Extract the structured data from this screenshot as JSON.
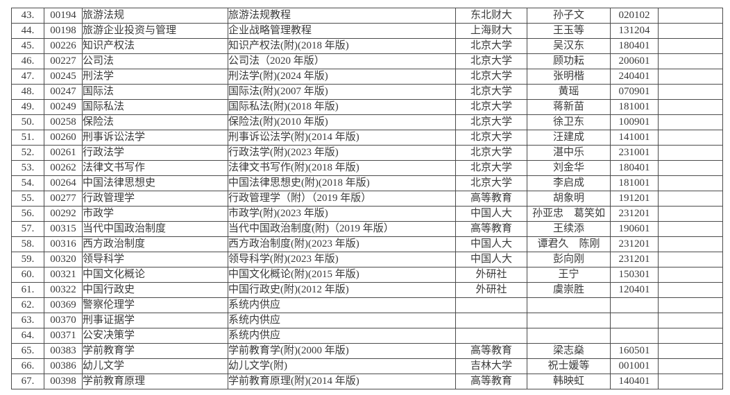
{
  "colors": {
    "text": "#3a3a3a",
    "border": "#4a4a4a",
    "background": "#ffffff"
  },
  "table": {
    "rows": [
      {
        "num": "43.",
        "code": "00194",
        "course": "旅游法规",
        "textbook": "旅游法规教程",
        "publisher": "东北财大",
        "author": "孙子文",
        "version": "020102",
        "note": ""
      },
      {
        "num": "44.",
        "code": "00198",
        "course": "旅游企业投资与管理",
        "textbook": "企业战略管理教程",
        "publisher": "上海财大",
        "author": "王玉等",
        "version": "131204",
        "note": ""
      },
      {
        "num": "45.",
        "code": "00226",
        "course": "知识产权法",
        "textbook": "知识产权法(附)(2018 年版)",
        "publisher": "北京大学",
        "author": "吴汉东",
        "version": "180401",
        "note": ""
      },
      {
        "num": "46.",
        "code": "00227",
        "course": "公司法",
        "textbook": "公司法（2020 年版）",
        "publisher": "北京大学",
        "author": "顾功耘",
        "version": "200601",
        "note": ""
      },
      {
        "num": "47.",
        "code": "00245",
        "course": "刑法学",
        "textbook": "刑法学(附)(2024 年版)",
        "publisher": "北京大学",
        "author": "张明楷",
        "version": "240401",
        "note": ""
      },
      {
        "num": "48.",
        "code": "00247",
        "course": "国际法",
        "textbook": "国际法(附)(2007 年版)",
        "publisher": "北京大学",
        "author": "黄瑶",
        "version": "070901",
        "note": ""
      },
      {
        "num": "49.",
        "code": "00249",
        "course": "国际私法",
        "textbook": "国际私法(附)(2018 年版)",
        "publisher": "北京大学",
        "author": "蒋新苗",
        "version": "181001",
        "note": ""
      },
      {
        "num": "50.",
        "code": "00258",
        "course": "保险法",
        "textbook": "保险法(附)(2010 年版)",
        "publisher": "北京大学",
        "author": "徐卫东",
        "version": "100901",
        "note": ""
      },
      {
        "num": "51.",
        "code": "00260",
        "course": "刑事诉讼法学",
        "textbook": "刑事诉讼法学(附)(2014 年版)",
        "publisher": "北京大学",
        "author": "汪建成",
        "version": "141001",
        "note": ""
      },
      {
        "num": "52.",
        "code": "00261",
        "course": "行政法学",
        "textbook": "行政法学(附)(2023 年版)",
        "publisher": "北京大学",
        "author": "湛中乐",
        "version": "231001",
        "note": ""
      },
      {
        "num": "53.",
        "code": "00262",
        "course": "法律文书写作",
        "textbook": "法律文书写作(附)(2018 年版)",
        "publisher": "北京大学",
        "author": "刘金华",
        "version": "180401",
        "note": ""
      },
      {
        "num": "54.",
        "code": "00264",
        "course": "中国法律思想史",
        "textbook": "中国法律思想史(附)(2018 年版)",
        "publisher": "北京大学",
        "author": "李启成",
        "version": "181001",
        "note": ""
      },
      {
        "num": "55.",
        "code": "00277",
        "course": "行政管理学",
        "textbook": "行政管理学（附）（2019 年版）",
        "publisher": "高等教育",
        "author": "胡象明",
        "version": "191201",
        "note": ""
      },
      {
        "num": "56.",
        "code": "00292",
        "course": "市政学",
        "textbook": "市政学(附)(2023 年版)",
        "publisher": "中国人大",
        "author": "孙亚忠　葛笑如",
        "version": "231201",
        "note": ""
      },
      {
        "num": "57.",
        "code": "00315",
        "course": "当代中国政治制度",
        "textbook": "当代中国政治制度(附)（2019 年版）",
        "publisher": "高等教育",
        "author": "王续添",
        "version": "190601",
        "note": ""
      },
      {
        "num": "58.",
        "code": "00316",
        "course": "西方政治制度",
        "textbook": "西方政治制度(附)(2023 年版)",
        "publisher": "中国人大",
        "author": "谭君久　陈刚",
        "version": "231201",
        "note": ""
      },
      {
        "num": "59.",
        "code": "00320",
        "course": "领导科学",
        "textbook": "领导科学(附)(2023 年版)",
        "publisher": "中国人大",
        "author": "彭向刚",
        "version": "231201",
        "note": ""
      },
      {
        "num": "60.",
        "code": "00321",
        "course": "中国文化概论",
        "textbook": "中国文化概论(附)(2015 年版)",
        "publisher": "外研社",
        "author": "王宁",
        "version": "150301",
        "note": ""
      },
      {
        "num": "61.",
        "code": "00322",
        "course": "中国行政史",
        "textbook": "中国行政史(附)(2012 年版)",
        "publisher": "外研社",
        "author": "虞崇胜",
        "version": "120401",
        "note": ""
      },
      {
        "num": "62.",
        "code": "00369",
        "course": "警察伦理学",
        "textbook": "系统内供应",
        "publisher": "",
        "author": "",
        "version": "",
        "note": ""
      },
      {
        "num": "63.",
        "code": "00370",
        "course": "刑事证据学",
        "textbook": "系统内供应",
        "publisher": "",
        "author": "",
        "version": "",
        "note": ""
      },
      {
        "num": "64.",
        "code": "00371",
        "course": "公安决策学",
        "textbook": "系统内供应",
        "publisher": "",
        "author": "",
        "version": "",
        "note": ""
      },
      {
        "num": "65.",
        "code": "00383",
        "course": "学前教育学",
        "textbook": "学前教育学(附)(2000 年版)",
        "publisher": "高等教育",
        "author": "梁志燊",
        "version": "160501",
        "note": ""
      },
      {
        "num": "66.",
        "code": "00386",
        "course": "幼儿文学",
        "textbook": "幼儿文学(附)",
        "publisher": "吉林大学",
        "author": "祝士媛等",
        "version": "001001",
        "note": ""
      },
      {
        "num": "67.",
        "code": "00398",
        "course": "学前教育原理",
        "textbook": "学前教育原理(附)(2014 年版)",
        "publisher": "高等教育",
        "author": "韩映虹",
        "version": "140401",
        "note": ""
      }
    ]
  }
}
